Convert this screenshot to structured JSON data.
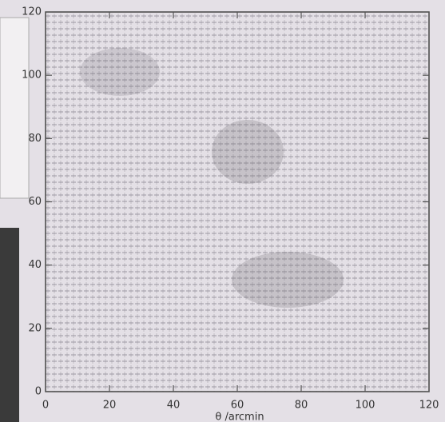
{
  "chart_data": {
    "type": "quiver",
    "x_label": "θ /arcmin",
    "xlim": [
      0,
      120
    ],
    "ylim": [
      0,
      120
    ],
    "xticks": [
      0,
      20,
      40,
      60,
      80,
      100,
      120
    ],
    "yticks": [
      0,
      20,
      40,
      60,
      80,
      100,
      120
    ],
    "color": "#555555"
  }
}
